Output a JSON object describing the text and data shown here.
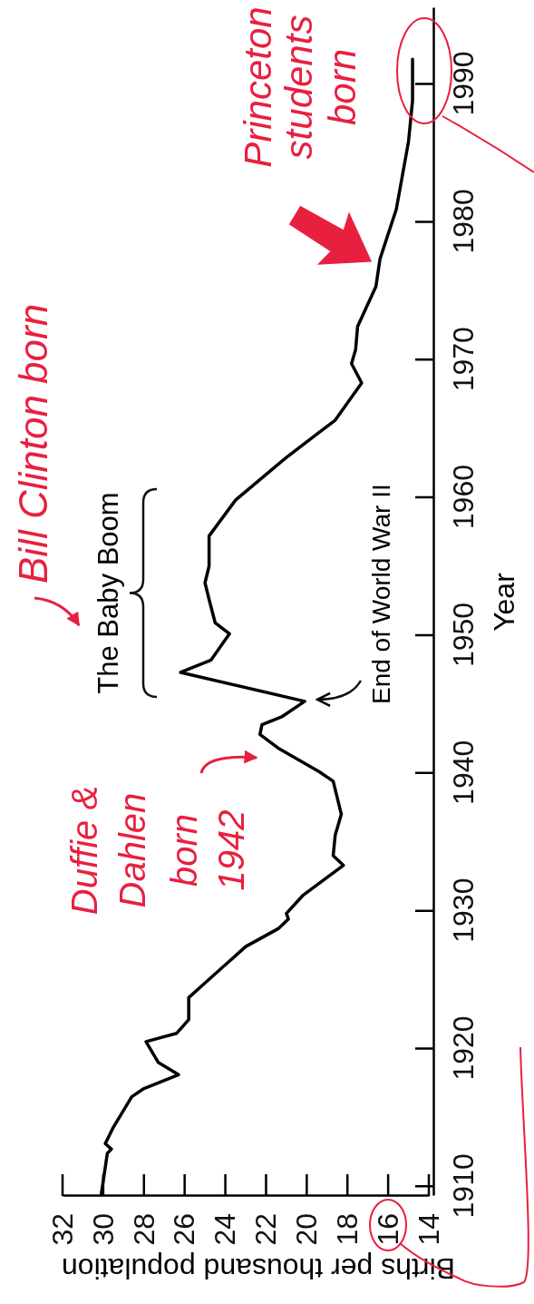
{
  "chart_data": {
    "type": "line",
    "xlabel": "Births per thousand population",
    "ylabel": "Year",
    "x": [
      30.1,
      29.8,
      29.6,
      29.9,
      29.5,
      28.6,
      28.0,
      26.3,
      27.3,
      27.9,
      26.4,
      25.8,
      25.8,
      25.2,
      23.0,
      21.4,
      20.9,
      21.0,
      20.2,
      18.2,
      18.7,
      18.6,
      18.3,
      18.7,
      19.4,
      21.4,
      22.3,
      22.2,
      21.2,
      20.1,
      26.2,
      24.7,
      23.8,
      24.5,
      24.8,
      25.0,
      24.8,
      24.8,
      23.5,
      21.0,
      19.4,
      18.6,
      17.3,
      17.8,
      17.6,
      17.5,
      16.6,
      16.4,
      15.6,
      15.0,
      14.8,
      14.8
    ],
    "series": [
      {
        "color": "#000000",
        "values": [
          1909.4,
          1912.4,
          1912.7,
          1913.1,
          1914.3,
          1916.5,
          1917.1,
          1918.1,
          1919.0,
          1920.5,
          1921.1,
          1922.1,
          1923.7,
          1924.5,
          1927.4,
          1928.7,
          1929.4,
          1929.8,
          1931.1,
          1933.3,
          1934.0,
          1935.5,
          1937.0,
          1939.4,
          1940.1,
          1941.8,
          1942.8,
          1943.5,
          1944.1,
          1945.2,
          1947.3,
          1948.2,
          1950.1,
          1950.9,
          1952.6,
          1953.8,
          1955.0,
          1957.2,
          1959.8,
          1962.9,
          1964.7,
          1965.6,
          1968.3,
          1969.7,
          1970.7,
          1972.4,
          1975.3,
          1977.3,
          1980.9,
          1985.8,
          1988.8,
          1991.8
        ]
      }
    ],
    "xlim": [
      32,
      14
    ],
    "xticks": [
      32,
      30,
      28,
      26,
      24,
      22,
      20,
      18,
      16,
      14
    ],
    "ylim": [
      1909.3,
      1995.5
    ],
    "yticks": [
      1910,
      1920,
      1930,
      1940,
      1950,
      1960,
      1970,
      1980,
      1990
    ],
    "grid": false,
    "legend": false,
    "marker": "none",
    "line_style": "solid",
    "annotations": [
      {
        "text": "End of World War II",
        "x": 20.1,
        "y": 1945.2
      },
      "Bill Clinton born",
      "Duffie & Dahlen born 1942",
      {
        "text": "Princeton students born",
        "x": 16.4,
        "y": 1977.3
      },
      "The Baby Boom"
    ]
  }
}
